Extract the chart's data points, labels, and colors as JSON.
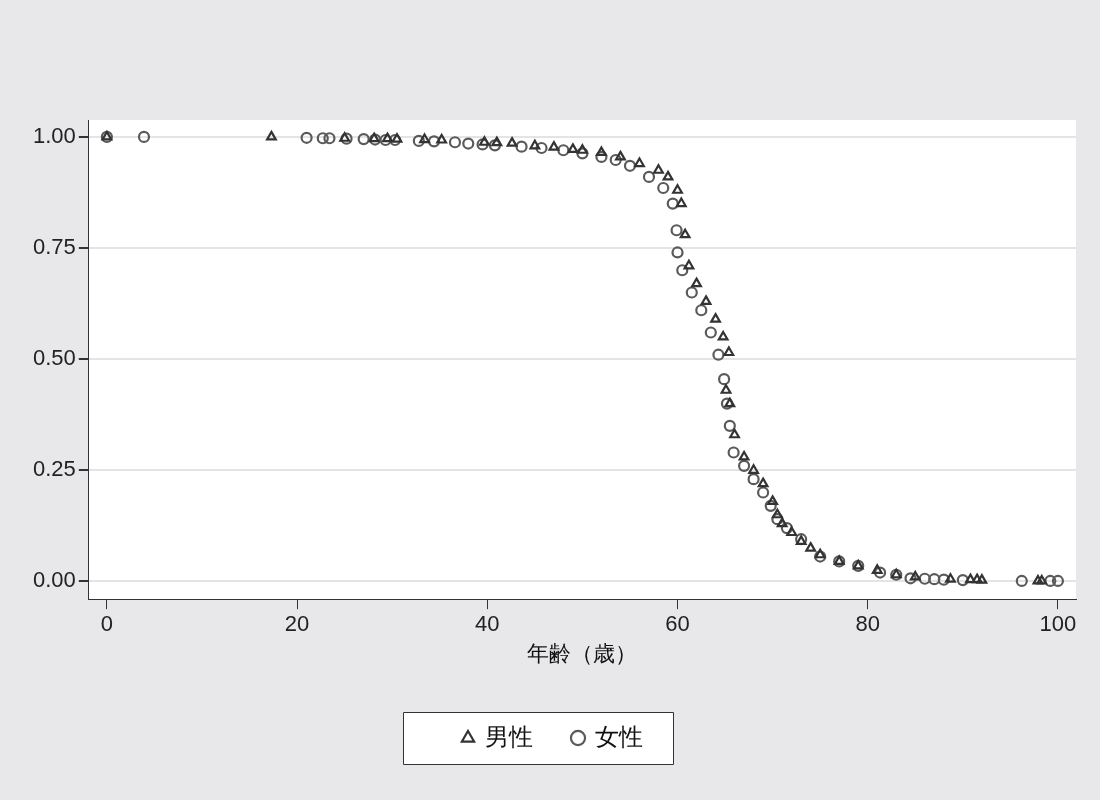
{
  "chart_data": {
    "type": "scatter",
    "xlabel": "年齢（歳）",
    "xlim": [
      -1.9,
      101.9
    ],
    "xticks": [
      0,
      20,
      40,
      60,
      80,
      100
    ],
    "ylim": [
      -0.04,
      1.038
    ],
    "yticks": [
      {
        "value": 0,
        "label": "0.00"
      },
      {
        "value": 0.25,
        "label": "0.25"
      },
      {
        "value": 0.5,
        "label": "0.50"
      },
      {
        "value": 0.75,
        "label": "0.75"
      },
      {
        "value": 1,
        "label": "1.00"
      }
    ],
    "grid": "y",
    "legend": "bottom",
    "series": [
      {
        "name": "男性",
        "color": "#333333",
        "marker": "triangle",
        "x": [
          0,
          17.3,
          25,
          28.1,
          29.5,
          30.5,
          33.4,
          35.2,
          39.7,
          41,
          42.6,
          45,
          47,
          49,
          50,
          52,
          54,
          56,
          58,
          59,
          60,
          60.4,
          60.8,
          61.2,
          62,
          63,
          64,
          64.8,
          65.4,
          65.1,
          65.5,
          66,
          67,
          68,
          69,
          70,
          70.5,
          71,
          72,
          73,
          74,
          75,
          77,
          79,
          81,
          83,
          85,
          88.7,
          90.8,
          91.5,
          92,
          97.9,
          98.3
        ],
        "values": [
          1,
          1,
          0.997,
          0.996,
          0.996,
          0.995,
          0.994,
          0.993,
          0.988,
          0.987,
          0.986,
          0.98,
          0.977,
          0.972,
          0.97,
          0.965,
          0.955,
          0.94,
          0.925,
          0.91,
          0.88,
          0.85,
          0.78,
          0.71,
          0.67,
          0.63,
          0.59,
          0.55,
          0.515,
          0.43,
          0.4,
          0.33,
          0.28,
          0.25,
          0.22,
          0.18,
          0.15,
          0.13,
          0.11,
          0.09,
          0.075,
          0.06,
          0.045,
          0.035,
          0.025,
          0.015,
          0.01,
          0.005,
          0.004,
          0.004,
          0.003,
          0.001,
          0.001
        ]
      },
      {
        "name": "女性",
        "color": "#5a5a5a",
        "marker": "circle",
        "x": [
          0,
          3.9,
          21,
          22.7,
          23.4,
          25.2,
          27,
          28.2,
          29.3,
          30.3,
          32.8,
          34.4,
          36.6,
          38,
          39.5,
          40.8,
          43.6,
          45.7,
          48,
          50,
          52,
          53.5,
          55,
          57,
          58.5,
          59.5,
          59.9,
          60,
          60.5,
          61.5,
          62.5,
          63.5,
          64.3,
          64.9,
          65.2,
          65.5,
          65.9,
          67,
          68,
          69,
          69.8,
          70.5,
          71.5,
          73,
          75,
          77,
          79,
          81.3,
          83,
          84.5,
          86,
          87,
          88,
          90,
          96.2,
          99.2,
          100
        ],
        "values": [
          1,
          1,
          0.998,
          0.997,
          0.997,
          0.996,
          0.995,
          0.994,
          0.993,
          0.993,
          0.991,
          0.99,
          0.988,
          0.985,
          0.983,
          0.981,
          0.978,
          0.975,
          0.97,
          0.963,
          0.955,
          0.948,
          0.935,
          0.91,
          0.885,
          0.85,
          0.79,
          0.74,
          0.7,
          0.65,
          0.61,
          0.56,
          0.51,
          0.455,
          0.4,
          0.35,
          0.29,
          0.26,
          0.23,
          0.2,
          0.17,
          0.14,
          0.12,
          0.095,
          0.056,
          0.045,
          0.035,
          0.02,
          0.015,
          0.007,
          0.006,
          0.005,
          0.004,
          0.003,
          0.001,
          0.001,
          0.001
        ]
      }
    ]
  }
}
